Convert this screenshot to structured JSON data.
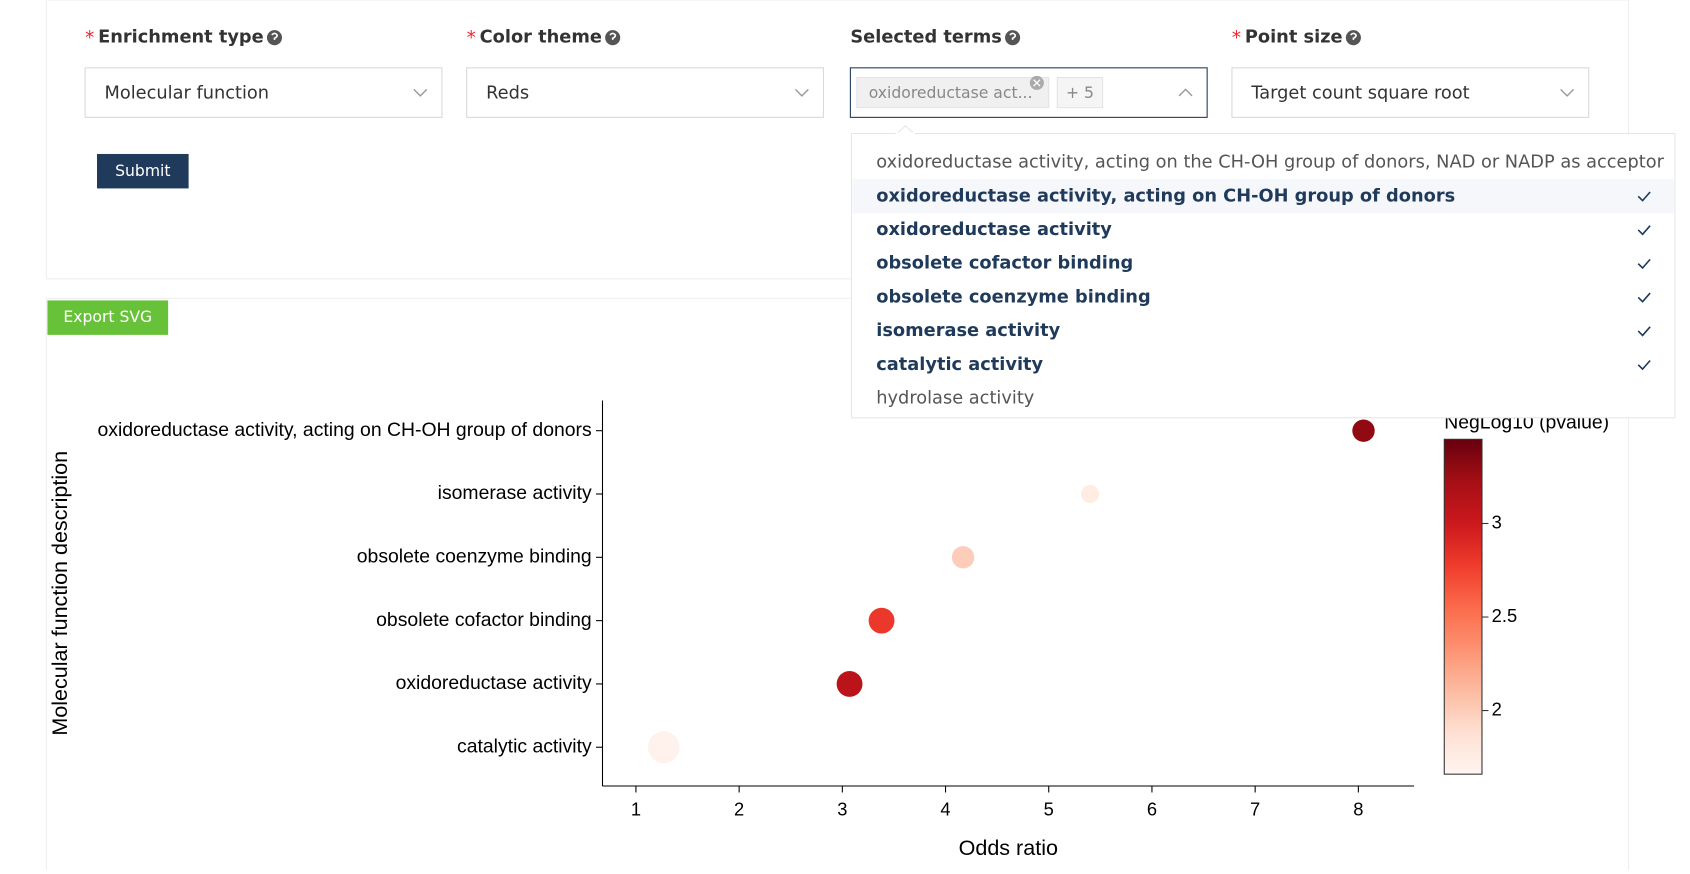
{
  "form": {
    "fields": [
      {
        "marker": "*",
        "label": "Enrichment type",
        "value": "Molecular function"
      },
      {
        "marker": "*",
        "label": "Color theme",
        "value": "Reds"
      },
      {
        "label": "Selected terms",
        "tag": "oxidoreductase act...",
        "more": "+ 5"
      },
      {
        "marker": "*",
        "label": "Point size",
        "value": "Target count square root"
      }
    ],
    "submit": "Submit"
  },
  "export": "Export SVG",
  "dropdown": {
    "options": [
      {
        "label": "oxidoreductase activity, acting on the CH-OH group of donors, NAD or NADP as acceptor",
        "selected": false
      },
      {
        "label": "oxidoreductase activity, acting on CH-OH group of donors",
        "selected": true
      },
      {
        "label": "oxidoreductase activity",
        "selected": true
      },
      {
        "label": "obsolete cofactor binding",
        "selected": true
      },
      {
        "label": "obsolete coenzyme binding",
        "selected": true
      },
      {
        "label": "isomerase activity",
        "selected": true
      },
      {
        "label": "catalytic activity",
        "selected": true
      },
      {
        "label": "hydrolase activity",
        "selected": false
      }
    ]
  },
  "chart_data": {
    "type": "scatter",
    "x_label": "Odds ratio",
    "y_label": "Molecular function description",
    "categories": [
      "oxidoreductase activity, acting on CH-OH group of donors",
      "isomerase activity",
      "obsolete coenzyme binding",
      "obsolete cofactor binding",
      "oxidoreductase activity",
      "catalytic activity"
    ],
    "values": [
      8.05,
      5.4,
      4.17,
      3.38,
      3.07,
      1.27
    ],
    "sizes": [
      3,
      2,
      3,
      4,
      4,
      6
    ],
    "color_values": [
      3.3,
      1.75,
      2.0,
      2.8,
      3.1,
      1.7
    ],
    "xlim": [
      0.676,
      8.54
    ],
    "xticks": [
      1,
      2,
      3,
      4,
      5,
      6,
      7,
      8
    ],
    "colorbar": {
      "title": "NegLog10 (pvalue)",
      "lim": [
        1.66,
        3.45
      ],
      "ticks": [
        2,
        2.5,
        3
      ],
      "colormap": [
        "#fff5f0",
        "#fee0d2",
        "#fcbba1",
        "#fc9272",
        "#fb6a4a",
        "#ef3b2c",
        "#cb181d",
        "#a50f15",
        "#67000d"
      ]
    }
  }
}
